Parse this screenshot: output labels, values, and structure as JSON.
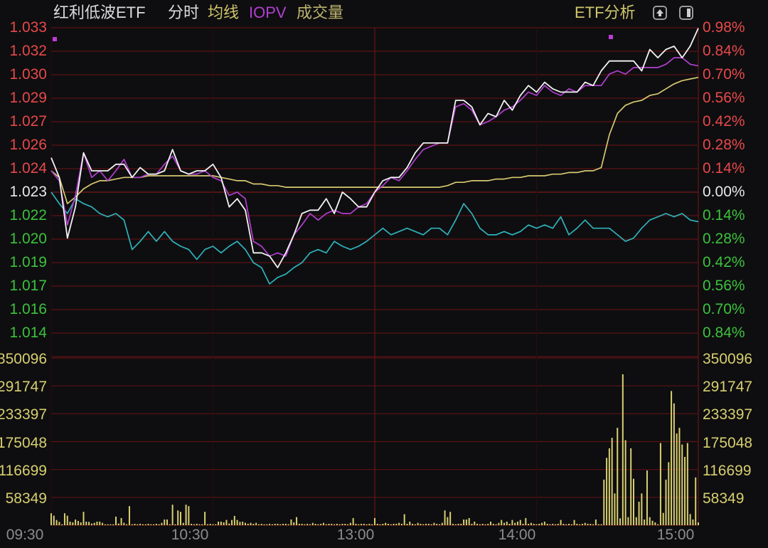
{
  "header": {
    "title": "红利低波ETF",
    "mode": "分时",
    "legend": [
      {
        "label": "均线",
        "color": "#cfc56c"
      },
      {
        "label": "IOPV",
        "color": "#b23fd0"
      },
      {
        "label": "成交量",
        "color": "#bdb46e"
      }
    ],
    "etf_analysis": "ETF分析",
    "icons": [
      "collapse-up-icon",
      "panel-toggle-icon"
    ]
  },
  "chart_data": {
    "type": "line",
    "prev_close": 1.023,
    "pct_range": 0.98,
    "grid": true,
    "colors": {
      "up": "#e8484a",
      "flat": "#e8e8e8",
      "down": "#3cc23c",
      "grid": "#5c1214",
      "volume": "#d8cf70",
      "time_axis": "#8c8c8c"
    },
    "price_ticks_left": [
      "1.033",
      "1.032",
      "1.030",
      "1.029",
      "1.027",
      "1.026",
      "1.024",
      "1.023",
      "1.022",
      "1.020",
      "1.019",
      "1.017",
      "1.016",
      "1.014"
    ],
    "pct_ticks_right": [
      "0.98%",
      "0.84%",
      "0.70%",
      "0.56%",
      "0.42%",
      "0.28%",
      "0.14%",
      "0.00%",
      "0.14%",
      "0.28%",
      "0.42%",
      "0.56%",
      "0.70%",
      "0.84%"
    ],
    "volume_ticks": [
      "350096",
      "291747",
      "233397",
      "175048",
      "116699",
      "58349"
    ],
    "x_ticks": [
      "09:30",
      "10:30",
      "13:00",
      "14:00",
      "15:00"
    ],
    "x": [
      "09:30",
      "09:33",
      "09:36",
      "09:39",
      "09:42",
      "09:45",
      "09:48",
      "09:51",
      "09:54",
      "09:57",
      "10:00",
      "10:03",
      "10:06",
      "10:09",
      "10:12",
      "10:15",
      "10:18",
      "10:21",
      "10:24",
      "10:27",
      "10:30",
      "10:33",
      "10:36",
      "10:39",
      "10:42",
      "10:45",
      "10:48",
      "10:51",
      "10:54",
      "10:57",
      "11:00",
      "11:03",
      "11:06",
      "11:09",
      "11:12",
      "11:15",
      "11:18",
      "11:21",
      "11:24",
      "11:27",
      "11:30",
      "13:03",
      "13:06",
      "13:09",
      "13:12",
      "13:15",
      "13:18",
      "13:21",
      "13:24",
      "13:27",
      "13:30",
      "13:33",
      "13:36",
      "13:39",
      "13:42",
      "13:45",
      "13:48",
      "13:51",
      "13:54",
      "13:57",
      "14:00",
      "14:03",
      "14:06",
      "14:09",
      "14:12",
      "14:15",
      "14:18",
      "14:21",
      "14:24",
      "14:27",
      "14:30",
      "14:33",
      "14:36",
      "14:39",
      "14:42",
      "14:45",
      "14:48",
      "14:51",
      "14:54",
      "14:57",
      "15:00"
    ],
    "series": [
      {
        "role": "price",
        "color": "#f2f2f2",
        "values": [
          1.0251,
          1.0239,
          1.0202,
          1.0221,
          1.0254,
          1.0243,
          1.0243,
          1.0243,
          1.0247,
          1.0247,
          1.0239,
          1.0245,
          1.0241,
          1.0241,
          1.0243,
          1.0256,
          1.0243,
          1.0241,
          1.0243,
          1.0243,
          1.0247,
          1.0239,
          1.0221,
          1.0226,
          1.0219,
          1.0193,
          1.0193,
          1.0191,
          1.0184,
          1.0193,
          1.0204,
          1.0217,
          1.0219,
          1.0219,
          1.0226,
          1.0217,
          1.023,
          1.0226,
          1.0221,
          1.0221,
          1.023,
          1.0237,
          1.0239,
          1.0239,
          1.0245,
          1.0254,
          1.026,
          1.026,
          1.026,
          1.026,
          1.0286,
          1.0286,
          1.0282,
          1.0271,
          1.0278,
          1.0276,
          1.0286,
          1.028,
          1.0289,
          1.0295,
          1.0291,
          1.0297,
          1.0293,
          1.0291,
          1.0291,
          1.0291,
          1.0297,
          1.0295,
          1.0304,
          1.031,
          1.031,
          1.031,
          1.031,
          1.0304,
          1.0317,
          1.0312,
          1.0317,
          1.0319,
          1.0312,
          1.0319,
          1.033
        ]
      },
      {
        "name": "IOPV",
        "role": "iopv",
        "color": "#b23fd0",
        "values": [
          1.0243,
          1.0237,
          1.021,
          1.0228,
          1.0254,
          1.0239,
          1.0243,
          1.0237,
          1.0243,
          1.025,
          1.0239,
          1.0239,
          1.0241,
          1.0241,
          1.0247,
          1.0252,
          1.0243,
          1.0241,
          1.0241,
          1.0243,
          1.0239,
          1.0237,
          1.0228,
          1.023,
          1.0226,
          1.02,
          1.0197,
          1.0191,
          1.0193,
          1.0191,
          1.0204,
          1.021,
          1.0217,
          1.0213,
          1.0217,
          1.0219,
          1.0217,
          1.0217,
          1.0221,
          1.0223,
          1.023,
          1.0234,
          1.0239,
          1.0237,
          1.0243,
          1.025,
          1.0256,
          1.0258,
          1.026,
          1.026,
          1.0282,
          1.0284,
          1.028,
          1.0271,
          1.0273,
          1.0276,
          1.028,
          1.0282,
          1.0286,
          1.0291,
          1.0289,
          1.0295,
          1.0291,
          1.0289,
          1.0293,
          1.0291,
          1.0295,
          1.0295,
          1.0295,
          1.0302,
          1.0304,
          1.0302,
          1.0306,
          1.0306,
          1.0306,
          1.0306,
          1.0308,
          1.0312,
          1.0312,
          1.0308,
          1.0307
        ]
      },
      {
        "name": "均线",
        "role": "average",
        "color": "#d6c870",
        "values": [
          1.0243,
          1.0239,
          1.0223,
          1.0227,
          1.0232,
          1.0235,
          1.0237,
          1.0237,
          1.0238,
          1.0239,
          1.0239,
          1.0239,
          1.024,
          1.024,
          1.024,
          1.024,
          1.024,
          1.024,
          1.024,
          1.024,
          1.024,
          1.0239,
          1.0238,
          1.0237,
          1.0237,
          1.0235,
          1.0235,
          1.0234,
          1.0234,
          1.0233,
          1.0233,
          1.0233,
          1.0233,
          1.0233,
          1.0233,
          1.0233,
          1.0233,
          1.0233,
          1.0233,
          1.0233,
          1.0233,
          1.0233,
          1.0233,
          1.0233,
          1.0233,
          1.0233,
          1.0233,
          1.0233,
          1.0233,
          1.0234,
          1.0236,
          1.0236,
          1.0237,
          1.0237,
          1.0237,
          1.0238,
          1.0238,
          1.0239,
          1.0239,
          1.024,
          1.024,
          1.024,
          1.0241,
          1.0241,
          1.0242,
          1.0242,
          1.0243,
          1.0243,
          1.0245,
          1.0265,
          1.0278,
          1.0283,
          1.0285,
          1.0286,
          1.0289,
          1.029,
          1.0293,
          1.0296,
          1.0298,
          1.0299,
          1.03
        ]
      },
      {
        "role": "reference",
        "color": "#2fb2ba",
        "values": [
          1.023,
          1.0223,
          1.0217,
          1.0226,
          1.0223,
          1.0221,
          1.0217,
          1.0215,
          1.0217,
          1.0213,
          1.0195,
          1.02,
          1.0206,
          1.02,
          1.0206,
          1.02,
          1.0197,
          1.0195,
          1.0189,
          1.0195,
          1.0197,
          1.0193,
          1.0197,
          1.02,
          1.0195,
          1.0187,
          1.0184,
          1.0174,
          1.0178,
          1.018,
          1.0184,
          1.0187,
          1.0193,
          1.0195,
          1.0193,
          1.02,
          1.0197,
          1.0195,
          1.0197,
          1.02,
          1.0204,
          1.0208,
          1.0204,
          1.0206,
          1.0208,
          1.0206,
          1.0204,
          1.0208,
          1.0208,
          1.0204,
          1.0213,
          1.0223,
          1.0217,
          1.0208,
          1.0204,
          1.0204,
          1.0206,
          1.0204,
          1.0206,
          1.021,
          1.0208,
          1.021,
          1.0208,
          1.0215,
          1.0204,
          1.0208,
          1.0213,
          1.0208,
          1.0208,
          1.0208,
          1.0204,
          1.02,
          1.0202,
          1.0208,
          1.0213,
          1.0215,
          1.0217,
          1.0215,
          1.0217,
          1.0213,
          1.0212
        ]
      }
    ],
    "volume": {
      "name": "成交量",
      "ylim": [
        0,
        350096
      ],
      "values": [
        25000,
        20000,
        11000,
        7000,
        2000,
        25000,
        20000,
        7500,
        6000,
        12000,
        9000,
        6000,
        28000,
        7500,
        7000,
        3500,
        5000,
        7500,
        7500,
        5000,
        2000,
        2000,
        2000,
        2000,
        18000,
        3500,
        15000,
        5000,
        2000,
        40000,
        2000,
        3000,
        2000,
        3000,
        2000,
        2000,
        3000,
        2000,
        2000,
        3000,
        2000,
        5000,
        12000,
        12000,
        2000,
        43000,
        2000,
        31000,
        28000,
        5000,
        43000,
        40000,
        3000,
        2000,
        3000,
        2000,
        2000,
        28000,
        2000,
        3000,
        2000,
        2000,
        7500,
        7500,
        6000,
        11000,
        3500,
        11000,
        19500,
        11000,
        7000,
        7500,
        5000,
        3000,
        5000,
        3000,
        5000,
        2000,
        3000,
        2000,
        2000,
        3000,
        2000,
        3000,
        3000,
        2000,
        3000,
        3000,
        2000,
        12000,
        6000,
        17000,
        3000,
        3000,
        2000,
        3000,
        2000,
        5000,
        3000,
        2000,
        3000,
        5000,
        2000,
        3000,
        3000,
        2000,
        3000,
        2000,
        3000,
        3000,
        2000,
        5000,
        15000,
        3000,
        2000,
        3000,
        3000,
        2000,
        3000,
        2000,
        15000,
        3000,
        2000,
        3000,
        5000,
        3000,
        2000,
        3000,
        3000,
        5000,
        3000,
        23000,
        3000,
        7500,
        3000,
        2000,
        5000,
        3000,
        2000,
        3000,
        3000,
        2000,
        5000,
        3000,
        2000,
        5000,
        31000,
        17000,
        28000,
        3000,
        2000,
        3000,
        3000,
        12000,
        12000,
        15000,
        3000,
        7500,
        3000,
        2000,
        3000,
        2000,
        3000,
        7500,
        3000,
        2000,
        5000,
        11000,
        5000,
        7500,
        3000,
        11000,
        5000,
        7500,
        11000,
        3000,
        15000,
        3000,
        5000,
        3000,
        2000,
        3000,
        5000,
        7500,
        3000,
        2000,
        3000,
        2000,
        3000,
        11000,
        3000,
        2000,
        3000,
        2000,
        11000,
        3000,
        2000,
        3000,
        5000,
        3000,
        3000,
        2000,
        12000,
        2000,
        2000,
        95400,
        141000,
        161000,
        183000,
        66600,
        204000,
        14400,
        316000,
        178000,
        16900,
        161000,
        97300,
        16900,
        49200,
        66600,
        12000,
        114700,
        16900,
        9400,
        6000,
        2000,
        172000,
        25800,
        95400,
        132000,
        281000,
        255000,
        192000,
        204000,
        169000,
        143000,
        172000,
        23400,
        12000,
        100000,
        6000
      ]
    }
  }
}
